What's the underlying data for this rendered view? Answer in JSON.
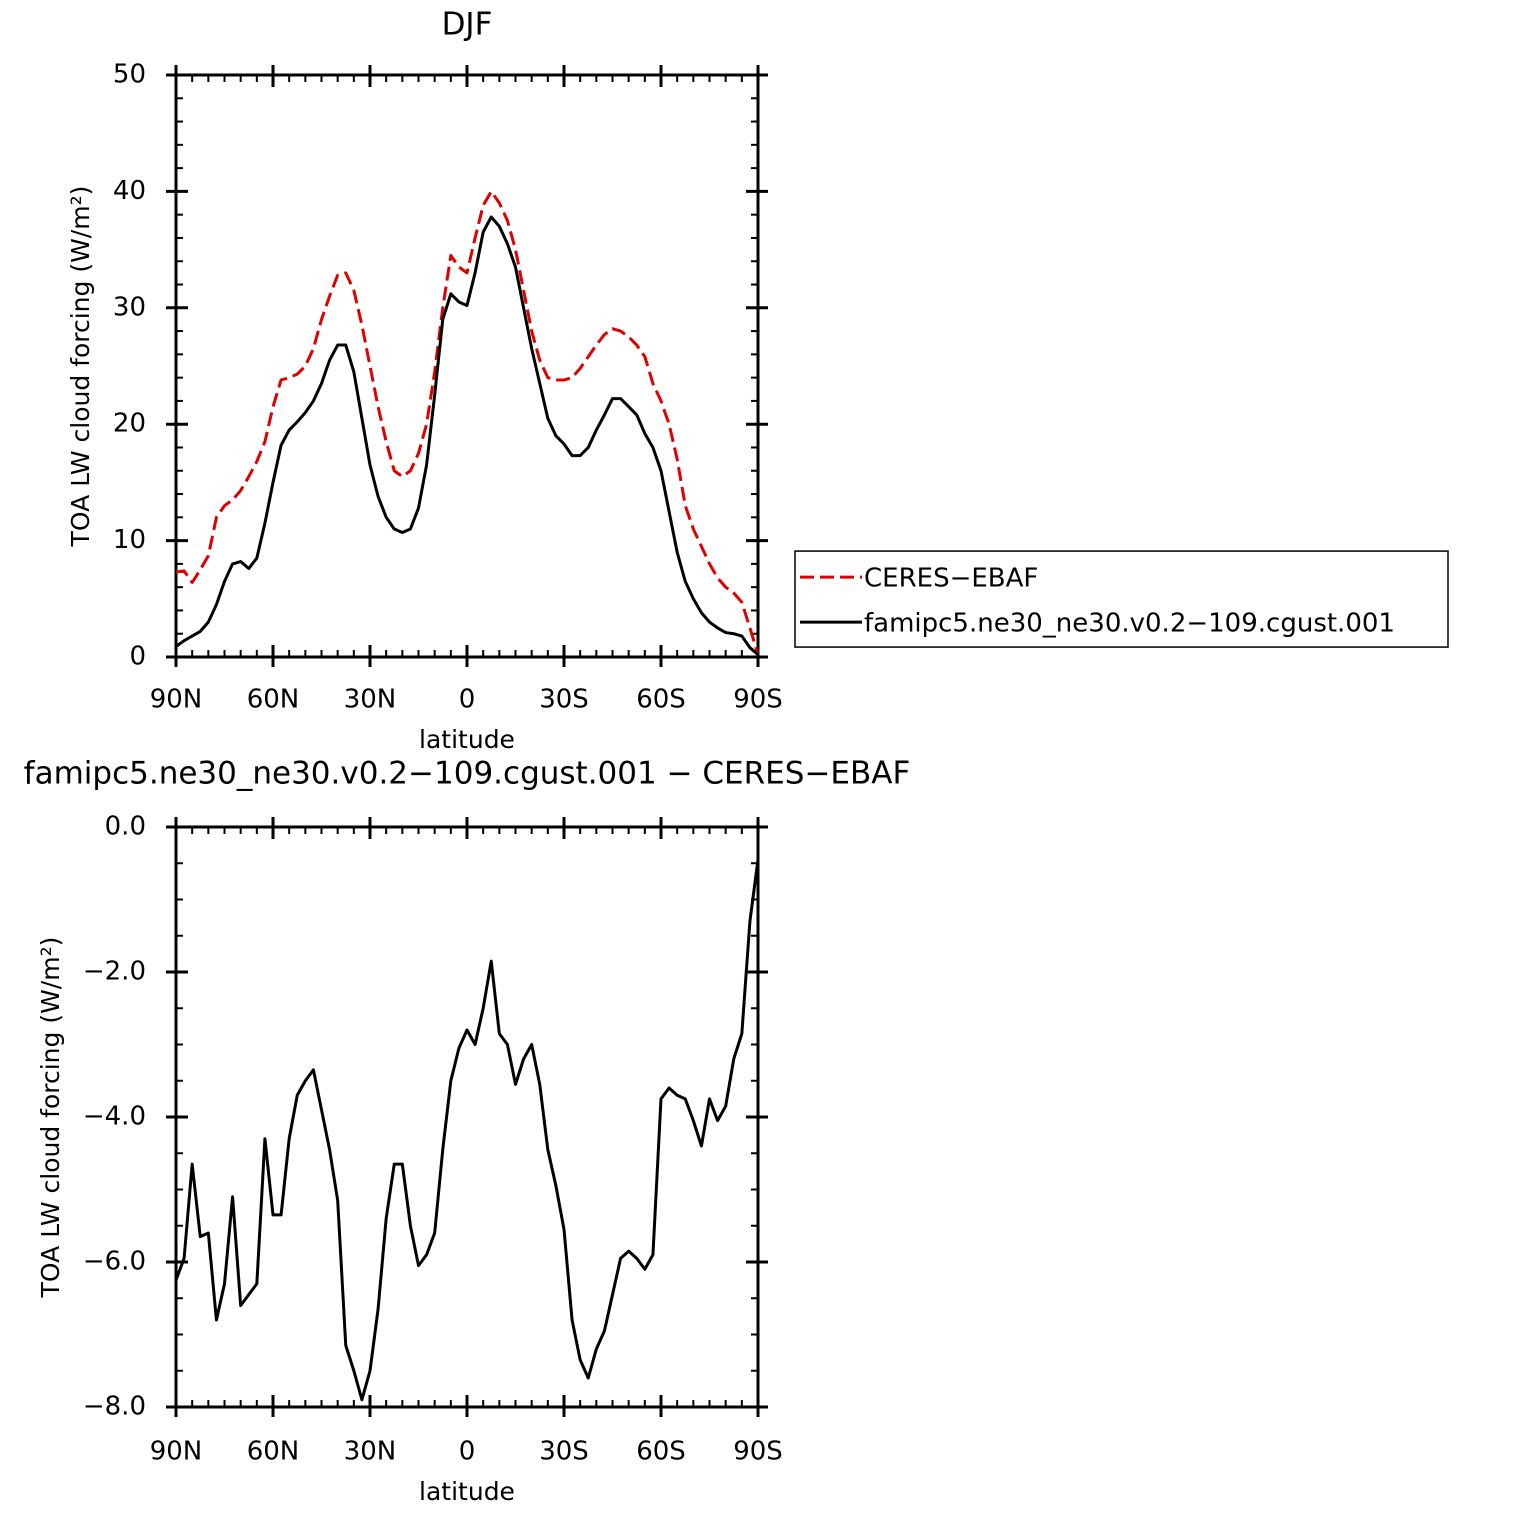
{
  "chart_data": [
    {
      "type": "line",
      "title": "DJF",
      "xlabel": "latitude",
      "ylabel": "TOA LW cloud forcing (W/m²)",
      "x": [
        90,
        87.5,
        85,
        82.5,
        80,
        77.5,
        75,
        72.5,
        70,
        67.5,
        65,
        62.5,
        60,
        57.5,
        55,
        52.5,
        50,
        47.5,
        45,
        42.5,
        40,
        37.5,
        35,
        32.5,
        30,
        27.5,
        25,
        22.5,
        20,
        17.5,
        15,
        12.5,
        10,
        7.5,
        5,
        2.5,
        0,
        -2.5,
        -5,
        -7.5,
        -10,
        -12.5,
        -15,
        -17.5,
        -20,
        -22.5,
        -25,
        -27.5,
        -30,
        -32.5,
        -35,
        -37.5,
        -40,
        -42.5,
        -45,
        -47.5,
        -50,
        -52.5,
        -55,
        -57.5,
        -60,
        -62.5,
        -65,
        -67.5,
        -70,
        -72.5,
        -75,
        -77.5,
        -80,
        -82.5,
        -85,
        -87.5,
        -90
      ],
      "xlim": [
        90,
        -90
      ],
      "xticks": [
        {
          "value": 90,
          "label": "90N"
        },
        {
          "value": 60,
          "label": "60N"
        },
        {
          "value": 30,
          "label": "30N"
        },
        0,
        {
          "value": -30,
          "label": "30S"
        },
        {
          "value": -60,
          "label": "60S"
        },
        {
          "value": -90,
          "label": "90S"
        }
      ],
      "ylim": [
        0,
        50
      ],
      "yticks": [
        0,
        10,
        20,
        30,
        40,
        50
      ],
      "legend": "right",
      "series": [
        {
          "name": "CERES−EBAF",
          "color": "#e00000",
          "dashed": true,
          "values": [
            7.3,
            7.4,
            6.4,
            7.5,
            8.7,
            12.0,
            13.0,
            13.5,
            14.3,
            15.5,
            16.8,
            18.5,
            21.5,
            23.8,
            24.0,
            24.3,
            25.0,
            26.5,
            29.0,
            31.0,
            32.8,
            33.0,
            31.5,
            28.5,
            25.0,
            21.5,
            18.5,
            16.0,
            15.5,
            16.0,
            17.5,
            20.0,
            24.5,
            30.0,
            34.5,
            33.5,
            33.0,
            36.0,
            38.8,
            40.0,
            39.0,
            37.5,
            35.0,
            31.5,
            28.0,
            25.5,
            24.0,
            23.8,
            23.8,
            24.0,
            24.8,
            25.8,
            26.8,
            27.7,
            28.2,
            28.0,
            27.5,
            26.8,
            25.8,
            23.5,
            22.0,
            20.0,
            17.0,
            13.0,
            11.0,
            9.5,
            8.0,
            6.8,
            6.0,
            5.5,
            4.7,
            2.5,
            0.2
          ]
        },
        {
          "name": "famipc5.ne30_ne30.v0.2−109.cgust.001",
          "color": "#000000",
          "dashed": false,
          "values": [
            0.9,
            1.4,
            1.8,
            2.2,
            3.0,
            4.5,
            6.5,
            8.0,
            8.2,
            7.6,
            8.5,
            11.5,
            15.0,
            18.2,
            19.5,
            20.2,
            21.0,
            22.0,
            23.5,
            25.5,
            26.8,
            26.8,
            24.5,
            20.5,
            16.5,
            13.8,
            12.0,
            11.0,
            10.7,
            11.0,
            12.8,
            16.5,
            22.5,
            29.0,
            31.2,
            30.5,
            30.2,
            33.0,
            36.5,
            37.8,
            37.0,
            35.5,
            33.5,
            30.0,
            26.5,
            23.5,
            20.5,
            19.0,
            18.3,
            17.3,
            17.3,
            18.0,
            19.5,
            20.8,
            22.2,
            22.2,
            21.5,
            20.8,
            19.2,
            18.0,
            16.0,
            12.5,
            9.0,
            6.5,
            5.0,
            3.8,
            3.0,
            2.5,
            2.1,
            2.0,
            1.8,
            0.8,
            0.2
          ]
        }
      ]
    },
    {
      "type": "line",
      "title": "famipc5.ne30_ne30.v0.2−109.cgust.001 − CERES−EBAF",
      "xlabel": "latitude",
      "ylabel": "TOA LW cloud forcing (W/m²)",
      "x": [
        90,
        87.5,
        85,
        82.5,
        80,
        77.5,
        75,
        72.5,
        70,
        67.5,
        65,
        62.5,
        60,
        57.5,
        55,
        52.5,
        50,
        47.5,
        45,
        42.5,
        40,
        37.5,
        35,
        32.5,
        30,
        27.5,
        25,
        22.5,
        20,
        17.5,
        15,
        12.5,
        10,
        7.5,
        5,
        2.5,
        0,
        -2.5,
        -5,
        -7.5,
        -10,
        -12.5,
        -15,
        -17.5,
        -20,
        -22.5,
        -25,
        -27.5,
        -30,
        -32.5,
        -35,
        -37.5,
        -40,
        -42.5,
        -45,
        -47.5,
        -50,
        -52.5,
        -55,
        -57.5,
        -60,
        -62.5,
        -65,
        -67.5,
        -70,
        -72.5,
        -75,
        -77.5,
        -80,
        -82.5,
        -85,
        -87.5,
        -90
      ],
      "xlim": [
        90,
        -90
      ],
      "xticks": [
        {
          "value": 90,
          "label": "90N"
        },
        {
          "value": 60,
          "label": "60N"
        },
        {
          "value": 30,
          "label": "30N"
        },
        0,
        {
          "value": -30,
          "label": "30S"
        },
        {
          "value": -60,
          "label": "60S"
        },
        {
          "value": -90,
          "label": "90S"
        }
      ],
      "ylim": [
        -8,
        0
      ],
      "yticks": [
        {
          "value": -8,
          "label": "−8.0"
        },
        {
          "value": -6,
          "label": "−6.0"
        },
        {
          "value": -4,
          "label": "−4.0"
        },
        {
          "value": -2,
          "label": "−2.0"
        },
        {
          "value": 0,
          "label": "0.0"
        }
      ],
      "color": "#000000",
      "values": [
        -6.25,
        -5.95,
        -4.65,
        -5.65,
        -5.6,
        -6.8,
        -6.3,
        -5.1,
        -6.6,
        -6.45,
        -6.3,
        -4.3,
        -5.35,
        -5.35,
        -4.3,
        -3.7,
        -3.5,
        -3.35,
        -3.9,
        -4.45,
        -5.15,
        -7.15,
        -7.5,
        -7.9,
        -7.5,
        -6.65,
        -5.4,
        -4.65,
        -4.65,
        -5.5,
        -6.05,
        -5.9,
        -5.6,
        -4.45,
        -3.5,
        -3.05,
        -2.8,
        -3.0,
        -2.5,
        -1.85,
        -2.85,
        -3.0,
        -3.55,
        -3.2,
        -3.0,
        -3.55,
        -4.45,
        -4.95,
        -5.55,
        -6.8,
        -7.35,
        -7.6,
        -7.2,
        -6.95,
        -6.45,
        -5.95,
        -5.85,
        -5.95,
        -6.1,
        -5.9,
        -3.75,
        -3.6,
        -3.7,
        -3.75,
        -4.05,
        -4.4,
        -3.75,
        -4.05,
        -3.85,
        -3.2,
        -2.85,
        -1.3,
        -0.45
      ]
    }
  ]
}
